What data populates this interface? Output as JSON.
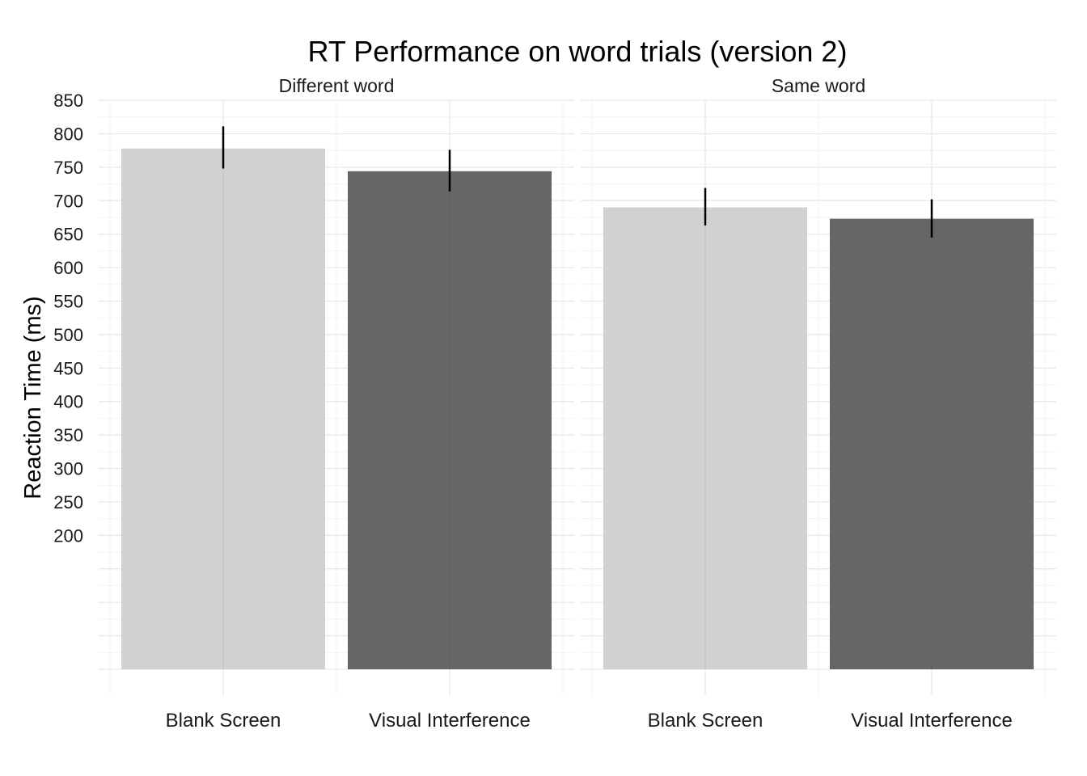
{
  "chart_data": {
    "type": "bar",
    "title": "RT Performance on word trials (version 2)",
    "ylabel": "Reaction Time (ms)",
    "xlabel": "",
    "ylim": [
      0,
      850
    ],
    "yticks": [
      200,
      250,
      300,
      350,
      400,
      450,
      500,
      550,
      600,
      650,
      700,
      750,
      800,
      850
    ],
    "grid": true,
    "colors": {
      "Blank Screen": "#d1d1d1",
      "Visual Interference": "#666666",
      "errorbar": "#000000"
    },
    "categories": [
      "Blank Screen",
      "Visual Interference"
    ],
    "panels": [
      {
        "label": "Different word",
        "values": [
          778,
          744
        ],
        "error_low": [
          748,
          714
        ],
        "error_high": [
          811,
          776
        ]
      },
      {
        "label": "Same word",
        "values": [
          690,
          673
        ],
        "error_low": [
          663,
          645
        ],
        "error_high": [
          719,
          702
        ]
      }
    ]
  }
}
